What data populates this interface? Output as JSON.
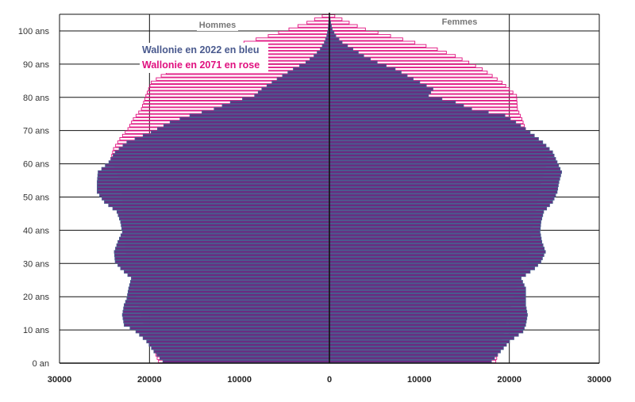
{
  "chart_data": {
    "type": "bar",
    "orientation": "horizontal",
    "left_label": "Hommes",
    "right_label": "Femmes",
    "x_ticks": [
      "30000",
      "20000",
      "10000",
      "0",
      "10000",
      "20000",
      "30000"
    ],
    "xlim": [
      -30000,
      30000
    ],
    "ylim": [
      0,
      105
    ],
    "y_ticks": [
      {
        "age": 0,
        "label": "0 an"
      },
      {
        "age": 10,
        "label": "10 ans"
      },
      {
        "age": 20,
        "label": "20 ans"
      },
      {
        "age": 30,
        "label": "30 ans"
      },
      {
        "age": 40,
        "label": "40 ans"
      },
      {
        "age": 50,
        "label": "50 ans"
      },
      {
        "age": 60,
        "label": "60 ans"
      },
      {
        "age": 70,
        "label": "70 ans"
      },
      {
        "age": 80,
        "label": "80 ans"
      },
      {
        "age": 90,
        "label": "90 ans"
      },
      {
        "age": 100,
        "label": "100 ans"
      }
    ],
    "legend": [
      {
        "label": "Wallonie en 2022 en bleu",
        "color": "#4a5a8e"
      },
      {
        "label": "Wallonie en 2071 en rose",
        "color": "#e0107f"
      }
    ],
    "series": [
      {
        "name": "Wallonie en 2022 en bleu",
        "color": "#4a5a8e",
        "fill": "#6a2a80",
        "anchors_men": [
          [
            0,
            18500
          ],
          [
            3,
            19500
          ],
          [
            6,
            20300
          ],
          [
            9,
            21500
          ],
          [
            11,
            22800
          ],
          [
            14,
            23000
          ],
          [
            17,
            22800
          ],
          [
            19,
            22500
          ],
          [
            22,
            22300
          ],
          [
            25,
            22000
          ],
          [
            28,
            23200
          ],
          [
            30,
            23800
          ],
          [
            33,
            23900
          ],
          [
            36,
            23500
          ],
          [
            39,
            23000
          ],
          [
            42,
            23200
          ],
          [
            45,
            23600
          ],
          [
            48,
            25000
          ],
          [
            51,
            25800
          ],
          [
            54,
            25800
          ],
          [
            57,
            25700
          ],
          [
            60,
            24500
          ],
          [
            63,
            23800
          ],
          [
            66,
            22500
          ],
          [
            69,
            19800
          ],
          [
            72,
            17700
          ],
          [
            74,
            15500
          ],
          [
            76,
            12800
          ],
          [
            78,
            11000
          ],
          [
            80,
            8300
          ],
          [
            82,
            7500
          ],
          [
            85,
            5800
          ],
          [
            88,
            4000
          ],
          [
            90,
            2600
          ],
          [
            92,
            1700
          ],
          [
            94,
            1000
          ],
          [
            96,
            550
          ],
          [
            98,
            280
          ],
          [
            100,
            130
          ],
          [
            102,
            60
          ],
          [
            104,
            0
          ]
        ],
        "anchors_women": [
          [
            0,
            18000
          ],
          [
            3,
            19000
          ],
          [
            6,
            20000
          ],
          [
            9,
            21500
          ],
          [
            11,
            21800
          ],
          [
            14,
            22000
          ],
          [
            17,
            21800
          ],
          [
            19,
            21800
          ],
          [
            22,
            21800
          ],
          [
            25,
            21300
          ],
          [
            28,
            22800
          ],
          [
            30,
            23500
          ],
          [
            33,
            24000
          ],
          [
            36,
            23600
          ],
          [
            39,
            23400
          ],
          [
            42,
            23500
          ],
          [
            45,
            23800
          ],
          [
            48,
            24800
          ],
          [
            51,
            25300
          ],
          [
            54,
            25500
          ],
          [
            57,
            25800
          ],
          [
            60,
            25300
          ],
          [
            63,
            24800
          ],
          [
            66,
            23700
          ],
          [
            69,
            22300
          ],
          [
            72,
            20700
          ],
          [
            74,
            19500
          ],
          [
            76,
            15800
          ],
          [
            78,
            14000
          ],
          [
            80,
            11000
          ],
          [
            82,
            11500
          ],
          [
            85,
            9300
          ],
          [
            88,
            7300
          ],
          [
            90,
            5300
          ],
          [
            92,
            3800
          ],
          [
            94,
            2600
          ],
          [
            96,
            1400
          ],
          [
            98,
            700
          ],
          [
            100,
            300
          ],
          [
            102,
            120
          ],
          [
            104,
            0
          ]
        ]
      },
      {
        "name": "Wallonie en 2071 en rose",
        "color": "#e0107f",
        "fill": "none",
        "anchors_men": [
          [
            0,
            19000
          ],
          [
            10,
            20500
          ],
          [
            20,
            21500
          ],
          [
            30,
            22500
          ],
          [
            40,
            22800
          ],
          [
            50,
            23000
          ],
          [
            55,
            23300
          ],
          [
            58,
            23800
          ],
          [
            61,
            24300
          ],
          [
            64,
            24000
          ],
          [
            67,
            23300
          ],
          [
            70,
            22400
          ],
          [
            73,
            21800
          ],
          [
            76,
            20900
          ],
          [
            80,
            20400
          ],
          [
            84,
            19800
          ],
          [
            88,
            17600
          ],
          [
            90,
            16000
          ],
          [
            92,
            14500
          ],
          [
            94,
            12000
          ],
          [
            96,
            9500
          ],
          [
            98,
            6800
          ],
          [
            100,
            4500
          ],
          [
            102,
            2500
          ],
          [
            104,
            800
          ],
          [
            105,
            200
          ]
        ],
        "anchors_women": [
          [
            0,
            18500
          ],
          [
            10,
            19500
          ],
          [
            20,
            20500
          ],
          [
            30,
            22000
          ],
          [
            40,
            22500
          ],
          [
            50,
            23200
          ],
          [
            55,
            23600
          ],
          [
            58,
            24000
          ],
          [
            61,
            24200
          ],
          [
            64,
            23700
          ],
          [
            67,
            22500
          ],
          [
            70,
            21800
          ],
          [
            73,
            21400
          ],
          [
            76,
            20900
          ],
          [
            80,
            20800
          ],
          [
            84,
            19200
          ],
          [
            88,
            17000
          ],
          [
            90,
            15500
          ],
          [
            92,
            14000
          ],
          [
            94,
            12000
          ],
          [
            96,
            9500
          ],
          [
            98,
            6800
          ],
          [
            100,
            4000
          ],
          [
            102,
            2200
          ],
          [
            104,
            600
          ],
          [
            105,
            150
          ]
        ]
      }
    ]
  }
}
